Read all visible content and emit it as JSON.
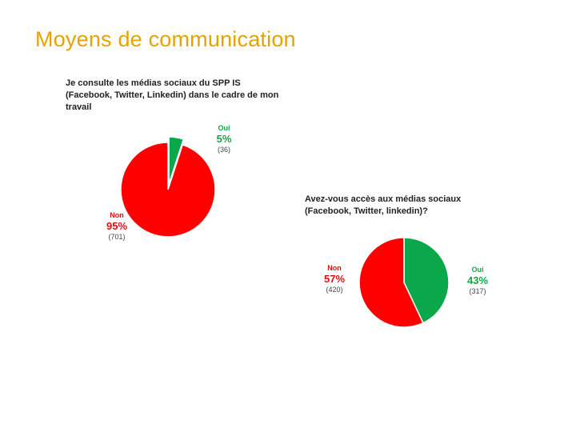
{
  "slide": {
    "title": "Moyens de communication"
  },
  "colors": {
    "oui": "#0aa84a",
    "non": "#ff0000",
    "title": "#e8a200"
  },
  "chart_data": [
    {
      "type": "pie",
      "title": "Je consulte les médias sociaux du SPP IS (Facebook, Twitter, Linkedin) dans le cadre de mon travail",
      "slices": [
        {
          "label": "Oui",
          "value": 5,
          "pct_label": "5%",
          "count_label": "(36)",
          "count": 36,
          "exploded": true
        },
        {
          "label": "Non",
          "value": 95,
          "pct_label": "95%",
          "count_label": "(701)",
          "count": 701
        }
      ]
    },
    {
      "type": "pie",
      "title": "Avez-vous accès aux médias sociaux (Facebook, Twitter, linkedin)?",
      "slices": [
        {
          "label": "Oui",
          "value": 43,
          "pct_label": "43%",
          "count_label": "(317)",
          "count": 317
        },
        {
          "label": "Non",
          "value": 57,
          "pct_label": "57%",
          "count_label": "(420)",
          "count": 420
        }
      ]
    }
  ]
}
